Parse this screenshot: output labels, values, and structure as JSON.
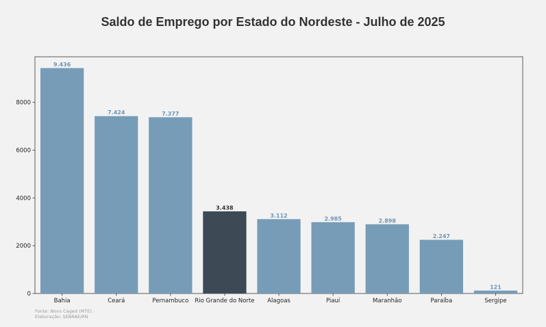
{
  "chart_data": {
    "type": "bar",
    "title": "Saldo de Emprego por Estado do Nordeste - Julho de 2025",
    "xlabel": "",
    "ylabel": "",
    "categories": [
      "Bahia",
      "Ceará",
      "Pernambuco",
      "Rio Grande do Norte",
      "Alagoas",
      "Piauí",
      "Maranhão",
      "Paraíba",
      "Sergipe"
    ],
    "values": [
      9436,
      7424,
      7377,
      3438,
      3112,
      2985,
      2898,
      2247,
      121
    ],
    "value_labels": [
      "9.436",
      "7.424",
      "7.377",
      "3.438",
      "3.112",
      "2.985",
      "2.898",
      "2.247",
      "121"
    ],
    "highlight": "Rio Grande do Norte",
    "ylim": [
      0,
      9908
    ],
    "yticks": [
      0,
      2000,
      4000,
      6000,
      8000
    ],
    "grid": false,
    "legend": "none"
  },
  "colors": {
    "bar": "#779cb7",
    "highlight_bar": "#3d4a56",
    "label": "#6f95b3",
    "highlight_label": "#333333",
    "axis": "#333333"
  },
  "footer": {
    "source": "Fonte: Novo Caged (MTE).",
    "credit": "Elaboração: SEBRAE/RN"
  }
}
